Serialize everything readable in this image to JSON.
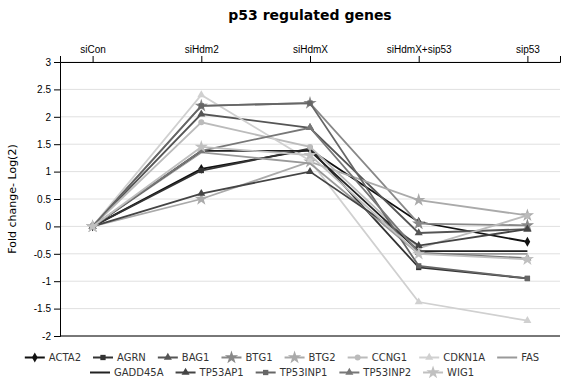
{
  "chart_data": {
    "type": "line",
    "title": "p53 regulated genes",
    "categories": [
      "siCon",
      "siHdm2",
      "siHdmX",
      "siHdmX+sip53",
      "sip53"
    ],
    "ylabel": "Fold change- Log(2)",
    "ylim": [
      -2,
      3
    ],
    "yticks": [
      -2,
      -1.5,
      -1,
      -0.5,
      0,
      0.5,
      1,
      1.5,
      2,
      2.5,
      3
    ],
    "grid": true,
    "legend": "bottom",
    "series": [
      {
        "name": "ACTA2",
        "color": "#111111",
        "marker": "diamond",
        "values": [
          0,
          1.05,
          1.4,
          0.08,
          -0.28
        ]
      },
      {
        "name": "AGRN",
        "color": "#333333",
        "marker": "square",
        "values": [
          0,
          1.02,
          1.42,
          -0.75,
          -0.95
        ]
      },
      {
        "name": "BAG1",
        "color": "#555555",
        "marker": "triangle",
        "values": [
          0,
          2.05,
          1.8,
          -0.12,
          -0.05
        ]
      },
      {
        "name": "BTG1",
        "color": "#888888",
        "marker": "star",
        "values": [
          0,
          2.2,
          2.25,
          0.05,
          0.02
        ]
      },
      {
        "name": "BTG2",
        "color": "#aaaaaa",
        "marker": "star",
        "values": [
          0,
          0.5,
          1.18,
          0.48,
          0.2
        ]
      },
      {
        "name": "CCNG1",
        "color": "#bbbbbb",
        "marker": "circle",
        "values": [
          0,
          1.9,
          1.45,
          -0.4,
          0.2
        ]
      },
      {
        "name": "CDKN1A",
        "color": "#d0d0d0",
        "marker": "triangle",
        "values": [
          0,
          2.4,
          1.2,
          -1.38,
          -1.72
        ]
      },
      {
        "name": "FAS",
        "color": "#999999",
        "values": [
          0,
          1.35,
          1.15,
          -0.5,
          -0.5
        ]
      },
      {
        "name": "GADD45A",
        "color": "#222222",
        "values": [
          0,
          1.38,
          1.38,
          -0.45,
          -0.45
        ]
      },
      {
        "name": "TP53AP1",
        "color": "#444444",
        "marker": "triangle",
        "values": [
          0,
          0.6,
          1.0,
          -0.35,
          -0.05
        ]
      },
      {
        "name": "TP53INP1",
        "color": "#666666",
        "marker": "square",
        "values": [
          0,
          2.2,
          2.25,
          -0.72,
          -0.95
        ]
      },
      {
        "name": "TP53INP2",
        "color": "#777777",
        "marker": "triangle",
        "values": [
          0,
          1.38,
          1.8,
          -0.48,
          -0.58
        ]
      },
      {
        "name": "WIG1",
        "color": "#c0c0c0",
        "marker": "star",
        "values": [
          0,
          1.45,
          1.3,
          -0.5,
          -0.6
        ]
      }
    ]
  }
}
